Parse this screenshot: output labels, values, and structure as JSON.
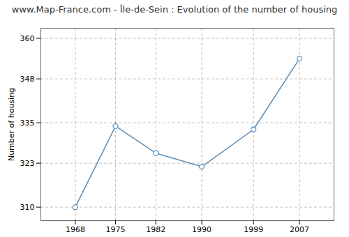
{
  "chart_data": {
    "type": "line",
    "title": "www.Map-France.com - Île-de-Sein : Evolution of the number of housing",
    "ylabel": "Number of housing",
    "x": [
      1968,
      1975,
      1982,
      1990,
      1999,
      2007
    ],
    "values": [
      310,
      334,
      326,
      322,
      333,
      354
    ],
    "color": "#5b8db8",
    "marker": "o",
    "xlim": [
      1962,
      2013
    ],
    "ylim": [
      306,
      363
    ],
    "xticks": [
      1968,
      1975,
      1982,
      1990,
      1999,
      2007
    ],
    "yticks": [
      310,
      323,
      335,
      348,
      360
    ],
    "grid": true
  }
}
